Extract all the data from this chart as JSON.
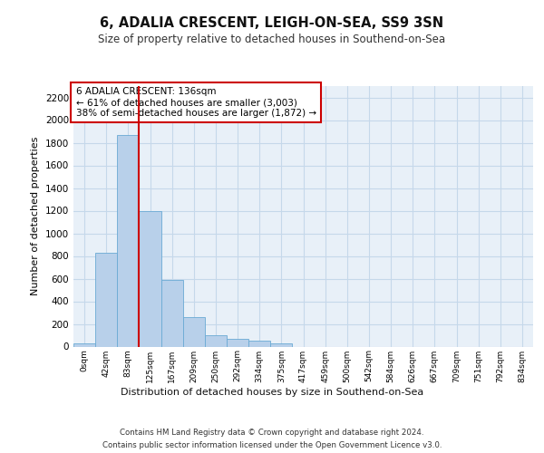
{
  "title1": "6, ADALIA CRESCENT, LEIGH-ON-SEA, SS9 3SN",
  "title2": "Size of property relative to detached houses in Southend-on-Sea",
  "xlabel": "Distribution of detached houses by size in Southend-on-Sea",
  "ylabel": "Number of detached properties",
  "footnote1": "Contains HM Land Registry data © Crown copyright and database right 2024.",
  "footnote2": "Contains public sector information licensed under the Open Government Licence v3.0.",
  "annotation_line1": "6 ADALIA CRESCENT: 136sqm",
  "annotation_line2": "← 61% of detached houses are smaller (3,003)",
  "annotation_line3": "38% of semi-detached houses are larger (1,872) →",
  "bin_labels": [
    "0sqm",
    "42sqm",
    "83sqm",
    "125sqm",
    "167sqm",
    "209sqm",
    "250sqm",
    "292sqm",
    "334sqm",
    "375sqm",
    "417sqm",
    "459sqm",
    "500sqm",
    "542sqm",
    "584sqm",
    "626sqm",
    "667sqm",
    "709sqm",
    "751sqm",
    "792sqm",
    "834sqm"
  ],
  "bar_heights": [
    25,
    830,
    1870,
    1200,
    590,
    260,
    100,
    70,
    50,
    30,
    0,
    0,
    0,
    0,
    0,
    0,
    0,
    0,
    0,
    0,
    0
  ],
  "bar_color": "#b8d0ea",
  "bar_edge_color": "#6aaad4",
  "grid_color": "#c5d8ea",
  "background_color": "#e8f0f8",
  "vline_color": "#cc0000",
  "annotation_box_color": "#cc0000",
  "ylim": [
    0,
    2300
  ],
  "yticks": [
    0,
    200,
    400,
    600,
    800,
    1000,
    1200,
    1400,
    1600,
    1800,
    2000,
    2200
  ]
}
